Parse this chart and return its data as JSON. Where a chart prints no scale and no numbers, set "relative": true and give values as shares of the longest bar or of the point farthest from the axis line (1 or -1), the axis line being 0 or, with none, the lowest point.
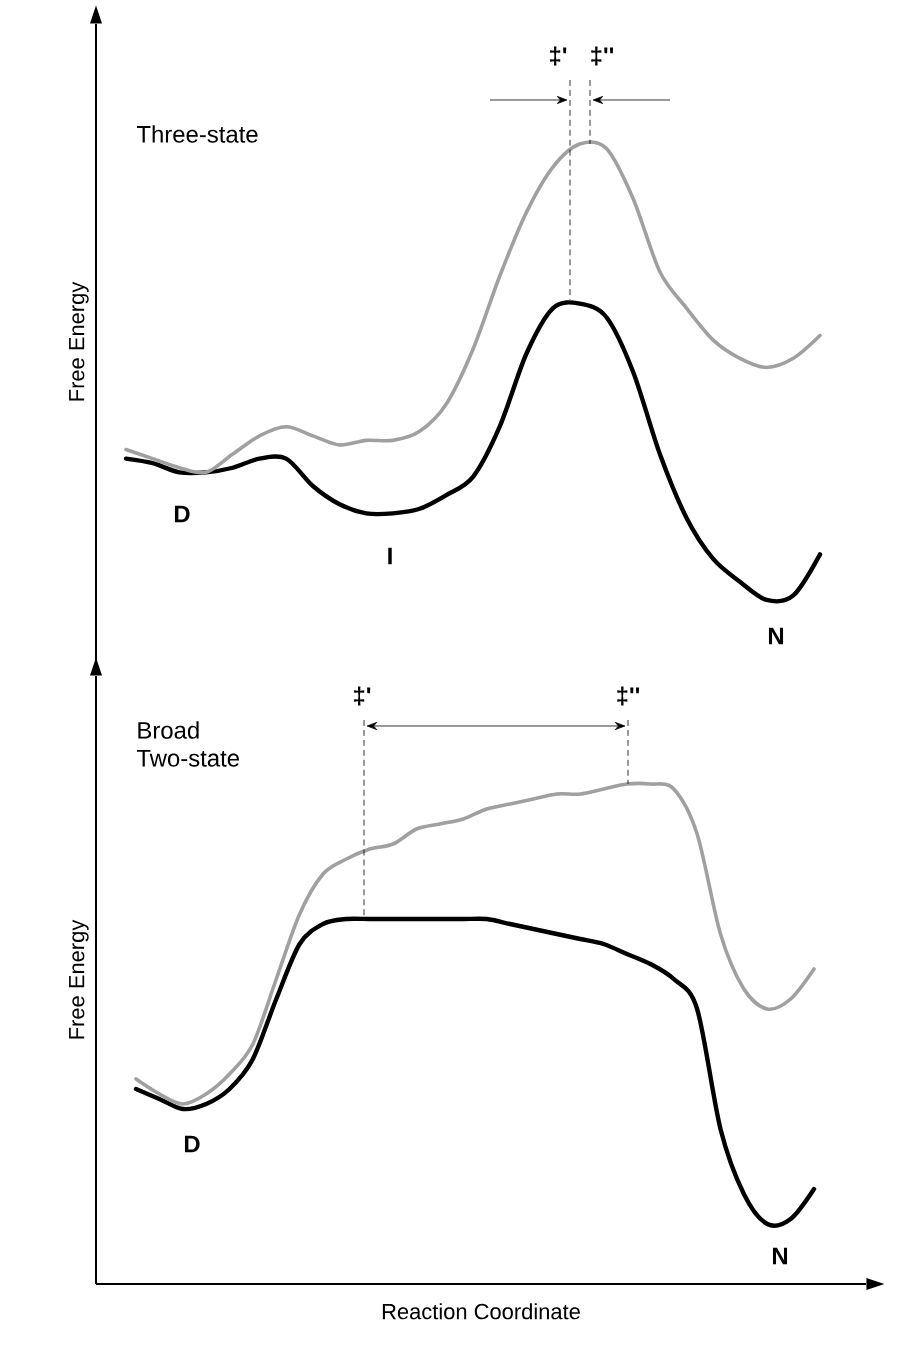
{
  "chart_data": [
    {
      "type": "line",
      "relative": true,
      "ylabel": "Free Energy",
      "annotations": [
        "Three-state",
        "D",
        "I",
        "N",
        "‡'",
        "‡''"
      ],
      "categories": [
        null,
        null,
        null,
        null,
        null,
        null,
        null,
        null,
        null,
        null,
        null,
        null,
        null,
        null,
        null,
        null,
        null,
        null,
        null,
        null,
        null,
        null,
        null,
        null,
        null,
        null,
        null
      ],
      "series": [
        {
          "color": "#000000",
          "values": [
            0.31,
            0.3,
            0.28,
            0.28,
            0.29,
            0.31,
            0.31,
            0.25,
            0.21,
            0.19,
            0.19,
            0.2,
            0.23,
            0.27,
            0.38,
            0.54,
            0.64,
            0.65,
            0.62,
            0.5,
            0.32,
            0.18,
            0.09,
            0.04,
            0.0,
            0.01,
            0.1
          ]
        },
        {
          "color": "#a0a0a0",
          "values": [
            0.33,
            0.31,
            0.29,
            0.28,
            0.32,
            0.36,
            0.38,
            0.36,
            0.34,
            0.35,
            0.35,
            0.37,
            0.43,
            0.55,
            0.71,
            0.85,
            0.95,
            1.0,
            0.99,
            0.88,
            0.72,
            0.64,
            0.57,
            0.53,
            0.51,
            0.53,
            0.58
          ]
        }
      ]
    },
    {
      "type": "line",
      "relative": true,
      "ylabel": "Free Energy",
      "xlabel": "Reaction Coordinate",
      "annotations": [
        "Broad Two-state",
        "D",
        "N",
        "‡'",
        "‡''"
      ],
      "categories": [
        null,
        null,
        null,
        null,
        null,
        null,
        null,
        null,
        null,
        null,
        null,
        null,
        null,
        null,
        null,
        null,
        null,
        null,
        null,
        null,
        null,
        null,
        null,
        null,
        null,
        null,
        null,
        null,
        null,
        null
      ],
      "series": [
        {
          "color": "#000000",
          "values": [
            0.39,
            0.37,
            0.35,
            0.36,
            0.39,
            0.45,
            0.57,
            0.68,
            0.72,
            0.73,
            0.73,
            0.73,
            0.73,
            0.73,
            0.73,
            0.73,
            0.72,
            0.71,
            0.7,
            0.69,
            0.68,
            0.66,
            0.64,
            0.61,
            0.55,
            0.31,
            0.18,
            0.12,
            0.13,
            0.19
          ]
        },
        {
          "color": "#a0a0a0",
          "values": [
            0.41,
            0.38,
            0.36,
            0.38,
            0.42,
            0.48,
            0.61,
            0.74,
            0.82,
            0.85,
            0.87,
            0.88,
            0.91,
            0.92,
            0.93,
            0.95,
            0.96,
            0.97,
            0.98,
            0.98,
            0.99,
            1.0,
            1.0,
            0.99,
            0.9,
            0.7,
            0.59,
            0.55,
            0.57,
            0.63
          ]
        }
      ]
    }
  ]
}
